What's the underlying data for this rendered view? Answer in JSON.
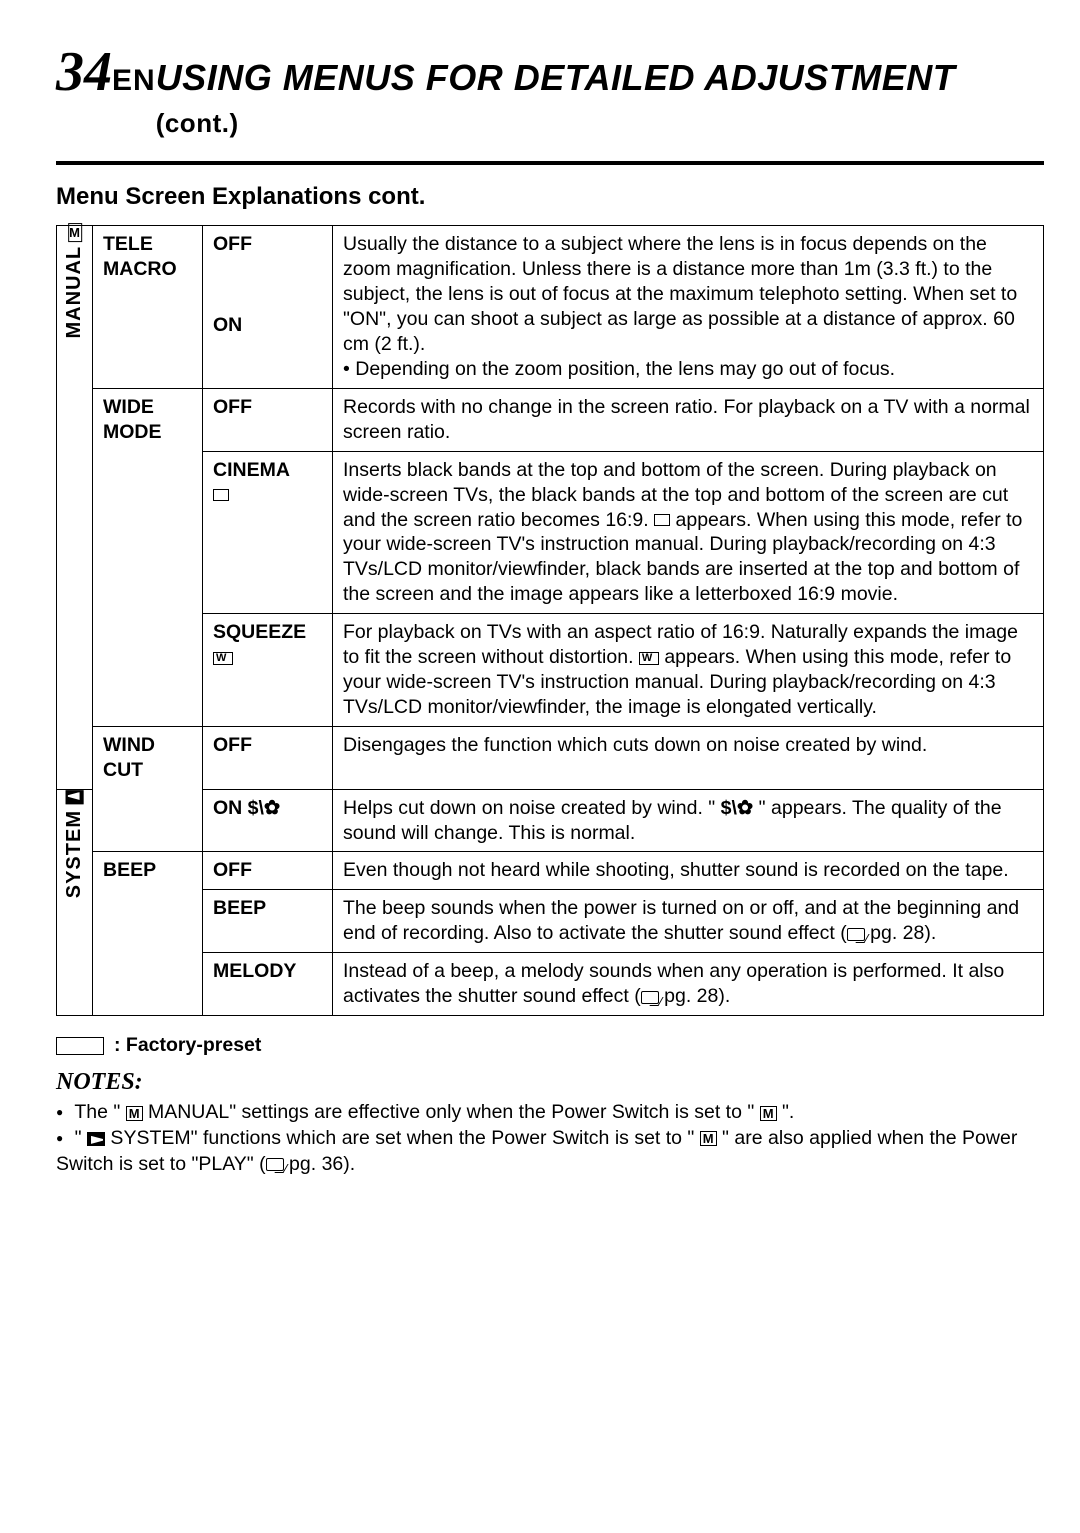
{
  "page": {
    "number": "34",
    "lang": "EN"
  },
  "title": {
    "main": "USING MENUS FOR DETAILED ADJUSTMENT",
    "cont": "(cont.)"
  },
  "subtitle": "Menu Screen Explanations cont.",
  "sections": {
    "manual": {
      "label": "MANUAL",
      "icon": "M"
    },
    "system": {
      "label": "SYSTEM"
    }
  },
  "rows": {
    "teleMacro": {
      "name": "TELE MACRO",
      "off": {
        "label": "OFF",
        "desc": "Usually the distance to a subject where the lens is in focus depends on the zoom magnification. Unless there is a distance more than 1m (3.3 ft.) to the subject, the lens is out of focus at the maximum telephoto setting. When set to \"ON\", you can shoot a subject as large as possible at a distance of approx. 60 cm (2 ft.)."
      },
      "on": {
        "label": "ON",
        "bullet": "Depending on the zoom position, the lens may go out of focus."
      }
    },
    "wideMode": {
      "name": "WIDE MODE",
      "off": {
        "label": "OFF",
        "desc": "Records with no change in the screen ratio. For playback on a TV with a normal screen ratio."
      },
      "cinema": {
        "label": "CINEMA",
        "descA": "Inserts black bands at the top and bottom of the screen. During playback on wide-screen TVs, the black bands at the top and bottom of the screen are cut and the screen ratio becomes 16:9. ",
        "descB": " appears. When using this mode, refer to your wide-screen TV's instruction manual. During playback/recording on 4:3 TVs/LCD monitor/viewfinder, black bands are inserted at the top and bottom of the screen and the image appears like a letterboxed 16:9 movie."
      },
      "squeeze": {
        "label": "SQUEEZE",
        "descA": "For playback on TVs with an aspect ratio of 16:9. Naturally expands the image to fit the screen without distortion. ",
        "descB": " appears. When using this mode, refer to your wide-screen TV's instruction manual. During playback/recording on 4:3 TVs/LCD monitor/viewfinder, the image is elongated vertically."
      }
    },
    "windCut": {
      "name": "WIND CUT",
      "off": {
        "label": "OFF",
        "desc": "Disengages the function which cuts down on noise created by wind."
      },
      "on": {
        "label": "ON",
        "descA": "Helps cut down on noise created by wind. \" ",
        "descB": " \" appears. The quality of the sound will change. This is normal."
      }
    },
    "beep": {
      "name": "BEEP",
      "off": {
        "label": "OFF",
        "desc": "Even though not heard while shooting, shutter sound is recorded on the tape."
      },
      "beep": {
        "label": "BEEP",
        "desc": "The beep sounds when the power is turned on or off, and at the beginning and end of recording. Also to activate the shutter sound effect (",
        "ref": "pg. 28).",
        "refIcon": "ref"
      },
      "melody": {
        "label": "MELODY",
        "desc": "Instead of a beep, a melody sounds when any operation is performed. It also activates the shutter sound effect (",
        "ref": "pg. 28)."
      }
    }
  },
  "legend": ": Factory-preset",
  "notes": {
    "heading": "NOTES:",
    "n1a": "The \" ",
    "n1b": " MANUAL\" settings are effective only when the Power Switch is set to \" ",
    "n1c": " \".",
    "n2a": "\" ",
    "n2b": " SYSTEM\" functions which are set when the Power Switch is set to \" ",
    "n2c": " \" are also applied when the Power Switch is set to \"PLAY\" (",
    "n2d": " pg. 36)."
  },
  "style": {
    "pageWidth": 1080,
    "pageHeight": 1533,
    "fontSizeBody": 19.5,
    "fontSizeTitle": 36,
    "fontSizePageNo": 56,
    "colors": {
      "text": "#000000",
      "bg": "#ffffff",
      "rule": "#000000"
    }
  }
}
